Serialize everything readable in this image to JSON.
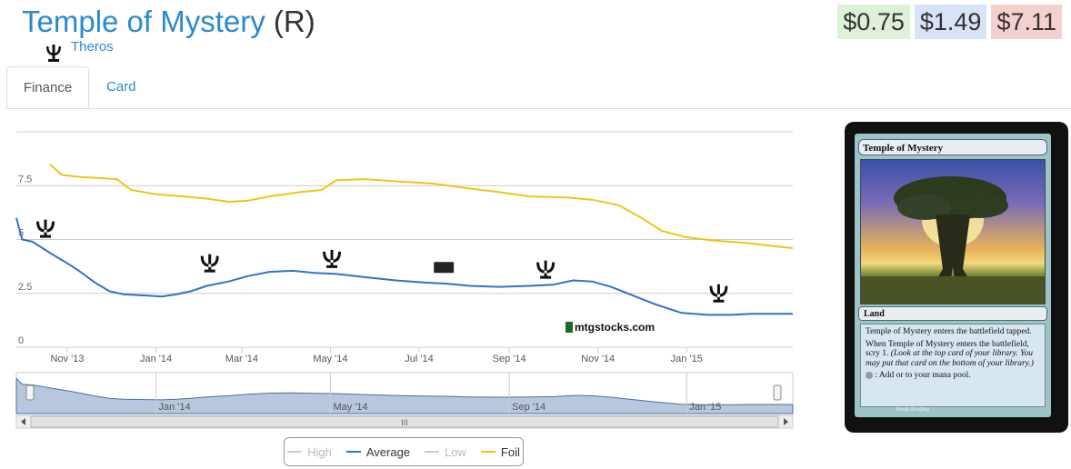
{
  "header": {
    "name": "Temple of Mystery",
    "rarity": "(R)",
    "set": "Theros"
  },
  "prices": {
    "low": "$0.75",
    "average": "$1.49",
    "high": "$7.11",
    "low_color": "#dff0d8",
    "average_color": "#d9e3f7",
    "high_color": "#f4d0d0"
  },
  "tabs": [
    {
      "label": "Finance",
      "active": true
    },
    {
      "label": "Card",
      "active": false
    }
  ],
  "chart_data": {
    "type": "line",
    "ylim": [
      0,
      10
    ],
    "y_ticks": [
      "0",
      "2.5",
      "5",
      "7.5"
    ],
    "x_tick_labels": [
      "Nov '13",
      "Jan '14",
      "Mar '14",
      "May '14",
      "Jul '14",
      "Sep '14",
      "Nov '14",
      "Jan '15"
    ],
    "x_start": "2013-09-27",
    "x_end": "2015-03-15",
    "series": [
      {
        "name": "High",
        "visible": false,
        "color": "#cccccc",
        "points": []
      },
      {
        "name": "Average",
        "visible": true,
        "color": "#2f74c6",
        "points": [
          [
            "2013-09-27",
            6.0
          ],
          [
            "2013-10-01",
            5.0
          ],
          [
            "2013-10-08",
            4.9
          ],
          [
            "2013-10-15",
            4.6
          ],
          [
            "2013-10-22",
            4.3
          ],
          [
            "2013-11-01",
            3.9
          ],
          [
            "2013-11-10",
            3.5
          ],
          [
            "2013-11-20",
            3.0
          ],
          [
            "2013-11-30",
            2.6
          ],
          [
            "2013-12-10",
            2.45
          ],
          [
            "2013-12-25",
            2.4
          ],
          [
            "2014-01-05",
            2.35
          ],
          [
            "2014-01-15",
            2.45
          ],
          [
            "2014-01-25",
            2.6
          ],
          [
            "2014-02-05",
            2.85
          ],
          [
            "2014-02-20",
            3.05
          ],
          [
            "2014-03-05",
            3.3
          ],
          [
            "2014-03-20",
            3.5
          ],
          [
            "2014-04-05",
            3.55
          ],
          [
            "2014-04-20",
            3.45
          ],
          [
            "2014-05-05",
            3.4
          ],
          [
            "2014-05-25",
            3.25
          ],
          [
            "2014-06-15",
            3.1
          ],
          [
            "2014-07-05",
            3.0
          ],
          [
            "2014-07-20",
            2.95
          ],
          [
            "2014-08-05",
            2.85
          ],
          [
            "2014-08-25",
            2.8
          ],
          [
            "2014-09-15",
            2.85
          ],
          [
            "2014-10-01",
            2.9
          ],
          [
            "2014-10-15",
            3.1
          ],
          [
            "2014-10-28",
            3.05
          ],
          [
            "2014-11-10",
            2.8
          ],
          [
            "2014-11-25",
            2.4
          ],
          [
            "2014-12-10",
            2.0
          ],
          [
            "2014-12-28",
            1.6
          ],
          [
            "2015-01-15",
            1.5
          ],
          [
            "2015-02-01",
            1.5
          ],
          [
            "2015-02-15",
            1.55
          ],
          [
            "2015-03-01",
            1.55
          ],
          [
            "2015-03-15",
            1.55
          ]
        ]
      },
      {
        "name": "Low",
        "visible": false,
        "color": "#cccccc",
        "points": []
      },
      {
        "name": "Foil",
        "visible": true,
        "color": "#f0c419",
        "points": [
          [
            "2013-10-20",
            8.5
          ],
          [
            "2013-10-28",
            8.0
          ],
          [
            "2013-11-10",
            7.9
          ],
          [
            "2013-11-25",
            7.85
          ],
          [
            "2013-12-05",
            7.8
          ],
          [
            "2013-12-15",
            7.3
          ],
          [
            "2014-01-01",
            7.1
          ],
          [
            "2014-01-20",
            7.0
          ],
          [
            "2014-02-05",
            6.9
          ],
          [
            "2014-02-20",
            6.75
          ],
          [
            "2014-03-05",
            6.8
          ],
          [
            "2014-03-20",
            7.0
          ],
          [
            "2014-04-10",
            7.2
          ],
          [
            "2014-04-25",
            7.3
          ],
          [
            "2014-05-05",
            7.75
          ],
          [
            "2014-05-25",
            7.8
          ],
          [
            "2014-06-15",
            7.7
          ],
          [
            "2014-07-10",
            7.6
          ],
          [
            "2014-08-01",
            7.4
          ],
          [
            "2014-08-25",
            7.2
          ],
          [
            "2014-09-15",
            7.0
          ],
          [
            "2014-10-10",
            6.95
          ],
          [
            "2014-10-28",
            6.85
          ],
          [
            "2014-11-15",
            6.6
          ],
          [
            "2014-12-01",
            6.0
          ],
          [
            "2014-12-15",
            5.4
          ],
          [
            "2015-01-01",
            5.1
          ],
          [
            "2015-01-20",
            4.95
          ],
          [
            "2015-02-10",
            4.85
          ],
          [
            "2015-03-01",
            4.7
          ],
          [
            "2015-03-15",
            4.6
          ]
        ]
      }
    ],
    "set_release_markers": [
      {
        "name": "Theros",
        "date": "2013-09-27",
        "value": 5.5
      },
      {
        "name": "Born of the Gods",
        "date": "2014-02-07",
        "value": 3.9
      },
      {
        "name": "Journey into Nyx",
        "date": "2014-05-02",
        "value": 4.1
      },
      {
        "name": "Magic 2015",
        "date": "2014-07-18",
        "value": 3.7
      },
      {
        "name": "Khans of Tarkir",
        "date": "2014-09-26",
        "value": 3.6
      },
      {
        "name": "Fate Reforged",
        "date": "2015-01-23",
        "value": 2.5
      }
    ],
    "navigator": {
      "labels": [
        "Jan '14",
        "May '14",
        "Sep '14",
        "Jan '15"
      ],
      "scroll_grip": "III"
    },
    "watermark": "mtgstocks.com",
    "legend_position": "bottom-center"
  },
  "card": {
    "name": "Temple of Mystery",
    "type_line": "Land",
    "text": [
      "Temple of Mystery enters the battlefield tapped.",
      "When Temple of Mystery enters the battlefield, scry 1.",
      "(Look at the top card of your library. You may put that card on the bottom of your library.)",
      ": Add   or   to your mana pool."
    ],
    "artist": "Noah Bradley",
    "footer_line": "™ & © 2013 Wizards of the Coast 226/249"
  }
}
